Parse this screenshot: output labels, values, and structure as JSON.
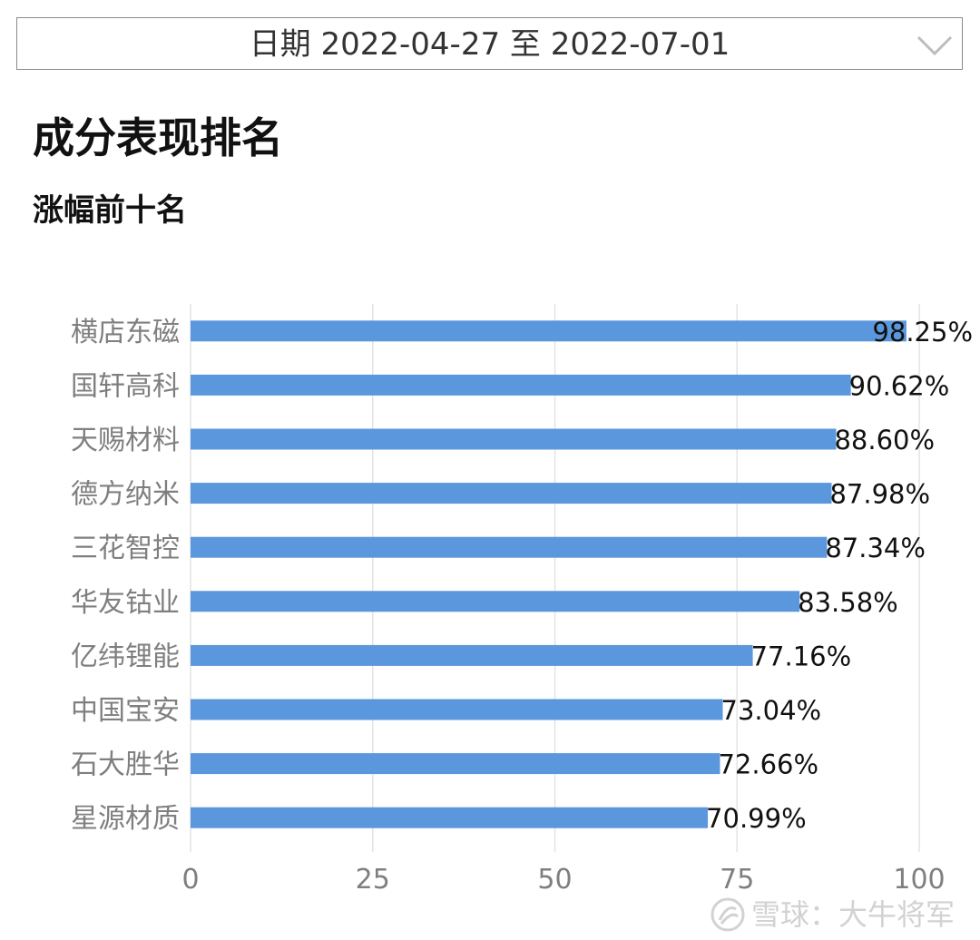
{
  "filter": {
    "date_label": "日期 2022-04-27 至 2022-07-01"
  },
  "header": {
    "title": "成分表现排名",
    "subtitle": "涨幅前十名"
  },
  "watermark": {
    "text": "雪球：大牛将军",
    "icon": "snowball-logo"
  },
  "colors": {
    "bar": "#5b97dc",
    "grid": "#e3e3e3",
    "label": "#7f7f7f",
    "value": "#111111"
  },
  "chart_data": {
    "type": "bar",
    "orientation": "horizontal",
    "categories": [
      "横店东磁",
      "国轩高科",
      "天赐材料",
      "德方纳米",
      "三花智控",
      "华友钴业",
      "亿纬锂能",
      "中国宝安",
      "石大胜华",
      "星源材质"
    ],
    "values": [
      98.25,
      90.62,
      88.6,
      87.98,
      87.34,
      83.58,
      77.16,
      73.04,
      72.66,
      70.99
    ],
    "data_labels": [
      "98.25%",
      "90.62%",
      "88.60%",
      "87.98%",
      "87.34%",
      "83.58%",
      "77.16%",
      "73.04%",
      "72.66%",
      "70.99%"
    ],
    "xlim": [
      0,
      100
    ],
    "xticks": [
      0,
      25,
      50,
      75,
      100
    ],
    "grid": "vertical",
    "legend": "none"
  }
}
